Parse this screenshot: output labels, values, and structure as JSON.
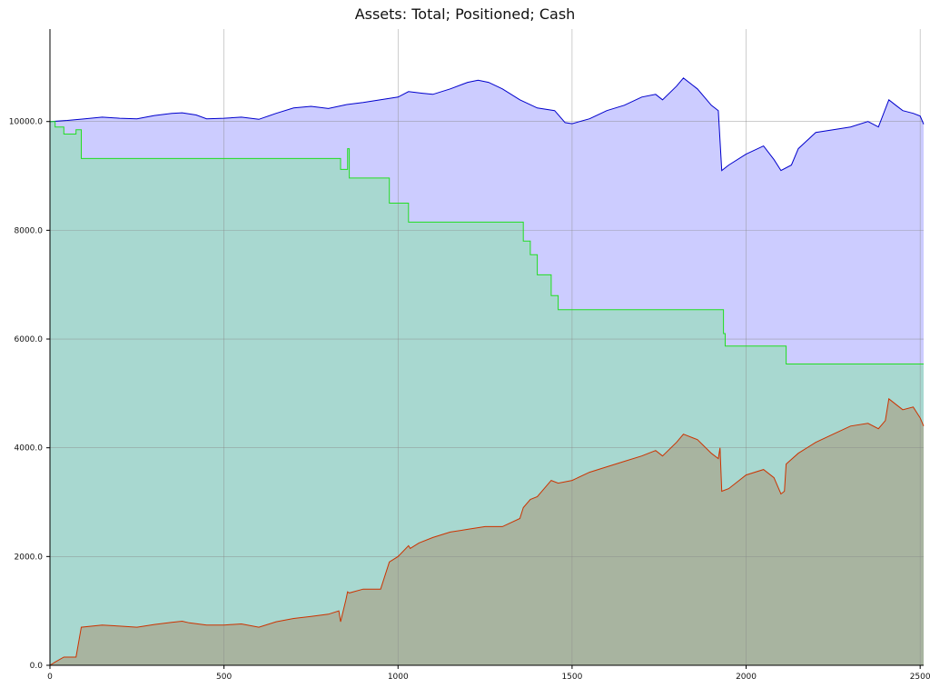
{
  "chart_data": {
    "type": "area",
    "title": "Assets: Total; Positioned; Cash",
    "xlabel": "",
    "ylabel": "",
    "xlim": [
      0,
      2510
    ],
    "ylim": [
      0,
      11700
    ],
    "xticks": [
      0,
      500,
      1000,
      1500,
      2000,
      2500
    ],
    "xtick_labels": [
      "0",
      "500",
      "1000",
      "1500",
      "2000",
      "2500"
    ],
    "yticks": [
      0,
      2000,
      4000,
      6000,
      8000,
      10000
    ],
    "ytick_labels": [
      "0.0",
      "2000.0",
      "4000.0",
      "6000.0",
      "8000.0",
      "10000.0"
    ],
    "grid": true,
    "series": [
      {
        "color": "#0000cc",
        "fill": "#ccccff",
        "x": [
          0,
          50,
          100,
          150,
          200,
          250,
          300,
          350,
          380,
          420,
          450,
          500,
          550,
          600,
          650,
          700,
          750,
          800,
          850,
          900,
          950,
          1000,
          1030,
          1070,
          1100,
          1150,
          1200,
          1230,
          1260,
          1300,
          1350,
          1400,
          1450,
          1480,
          1500,
          1550,
          1600,
          1650,
          1700,
          1740,
          1760,
          1800,
          1820,
          1860,
          1900,
          1920,
          1930,
          1950,
          2000,
          2050,
          2080,
          2100,
          2130,
          2150,
          2200,
          2250,
          2300,
          2350,
          2380,
          2410,
          2430,
          2450,
          2480,
          2500,
          2510
        ],
        "y": [
          10000,
          10020,
          10050,
          10080,
          10060,
          10050,
          10110,
          10150,
          10160,
          10120,
          10050,
          10060,
          10080,
          10040,
          10150,
          10250,
          10280,
          10240,
          10310,
          10350,
          10400,
          10450,
          10550,
          10520,
          10500,
          10600,
          10720,
          10760,
          10720,
          10600,
          10400,
          10250,
          10200,
          9980,
          9960,
          10050,
          10200,
          10300,
          10450,
          10500,
          10400,
          10650,
          10800,
          10600,
          10300,
          10200,
          9100,
          9200,
          9400,
          9550,
          9300,
          9100,
          9200,
          9500,
          9800,
          9850,
          9900,
          10000,
          9900,
          10400,
          10300,
          10200,
          10150,
          10100,
          9950
        ]
      },
      {
        "color": "#22dd22",
        "fill": "#a8d8d0",
        "step": true,
        "x": [
          0,
          15,
          40,
          75,
          90,
          830,
          835,
          855,
          860,
          975,
          1030,
          1350,
          1360,
          1380,
          1400,
          1440,
          1460,
          1930,
          1935,
          1940,
          2100,
          2115,
          2510
        ],
        "y": [
          10000,
          9900,
          9770,
          9850,
          9320,
          9320,
          9120,
          9500,
          8960,
          8500,
          8150,
          8150,
          7800,
          7550,
          7180,
          6800,
          6540,
          6540,
          6100,
          5870,
          5870,
          5540,
          5540
        ]
      },
      {
        "color": "#cc3300",
        "fill": "#a8b4a0",
        "x": [
          0,
          15,
          40,
          75,
          90,
          150,
          200,
          250,
          300,
          350,
          380,
          400,
          450,
          500,
          550,
          600,
          650,
          700,
          750,
          800,
          830,
          835,
          850,
          855,
          860,
          900,
          950,
          975,
          1000,
          1030,
          1035,
          1060,
          1100,
          1150,
          1200,
          1250,
          1300,
          1350,
          1360,
          1380,
          1400,
          1440,
          1460,
          1500,
          1550,
          1600,
          1650,
          1700,
          1740,
          1760,
          1800,
          1820,
          1860,
          1900,
          1920,
          1925,
          1930,
          1950,
          2000,
          2050,
          2080,
          2100,
          2110,
          2115,
          2150,
          2200,
          2250,
          2300,
          2350,
          2380,
          2400,
          2410,
          2430,
          2450,
          2480,
          2500,
          2510
        ],
        "y": [
          0,
          60,
          150,
          150,
          700,
          740,
          720,
          700,
          750,
          790,
          810,
          780,
          740,
          740,
          760,
          700,
          800,
          860,
          900,
          940,
          1000,
          800,
          1200,
          1350,
          1330,
          1400,
          1400,
          1900,
          2000,
          2200,
          2150,
          2250,
          2350,
          2450,
          2500,
          2550,
          2550,
          2700,
          2900,
          3050,
          3100,
          3400,
          3350,
          3400,
          3550,
          3650,
          3750,
          3850,
          3950,
          3850,
          4100,
          4250,
          4150,
          3900,
          3800,
          4000,
          3200,
          3250,
          3500,
          3600,
          3450,
          3150,
          3200,
          3700,
          3900,
          4100,
          4250,
          4400,
          4450,
          4350,
          4500,
          4900,
          4800,
          4700,
          4750,
          4550,
          4400
        ]
      }
    ]
  }
}
